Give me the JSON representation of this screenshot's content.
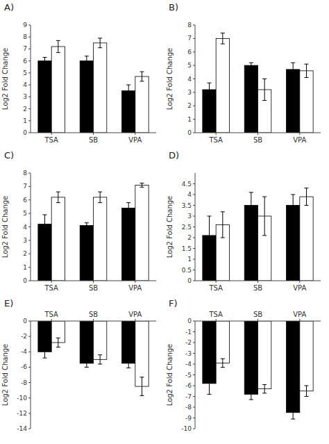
{
  "chart_data": [
    {
      "type": "bar",
      "title": "A)",
      "y_label": "Log2 Fold Change",
      "categories": [
        "TSA",
        "SB",
        "VPA"
      ],
      "series": [
        {
          "color": "#000000",
          "values": [
            6.0,
            6.0,
            3.5
          ],
          "errors": [
            0.3,
            0.4,
            0.5
          ]
        },
        {
          "color": "#ffffff",
          "values": [
            7.2,
            7.5,
            4.7
          ],
          "errors": [
            0.5,
            0.4,
            0.4
          ]
        }
      ],
      "ylim": [
        0,
        9
      ],
      "yticks": [
        0,
        1,
        2,
        3,
        4,
        5,
        6,
        7,
        8,
        9
      ]
    },
    {
      "type": "bar",
      "title": "B)",
      "y_label": "Log2 Fold Change",
      "categories": [
        "TSA",
        "SB",
        "VPA"
      ],
      "series": [
        {
          "color": "#000000",
          "values": [
            3.2,
            5.0,
            4.7
          ],
          "errors": [
            0.5,
            0.2,
            0.5
          ]
        },
        {
          "color": "#ffffff",
          "values": [
            7.0,
            3.2,
            4.6
          ],
          "errors": [
            0.4,
            0.8,
            0.5
          ]
        }
      ],
      "ylim": [
        0,
        8
      ],
      "yticks": [
        0,
        1,
        2,
        3,
        4,
        5,
        6,
        7,
        8
      ]
    },
    {
      "type": "bar",
      "title": "C)",
      "y_label": "Log2 Fold Change",
      "categories": [
        "TSA",
        "SB",
        "VPA"
      ],
      "series": [
        {
          "color": "#000000",
          "values": [
            4.2,
            4.1,
            5.4
          ],
          "errors": [
            0.7,
            0.2,
            0.4
          ]
        },
        {
          "color": "#ffffff",
          "values": [
            6.2,
            6.2,
            7.1
          ],
          "errors": [
            0.4,
            0.4,
            0.15
          ]
        }
      ],
      "ylim": [
        0,
        8
      ],
      "yticks": [
        0,
        1,
        2,
        3,
        4,
        5,
        6,
        7,
        8
      ]
    },
    {
      "type": "bar",
      "title": "D)",
      "y_label": "Log2 Fold Change",
      "categories": [
        "TSA",
        "SB",
        "VPA"
      ],
      "series": [
        {
          "color": "#000000",
          "values": [
            2.1,
            3.5,
            3.5
          ],
          "errors": [
            0.9,
            0.6,
            0.5
          ]
        },
        {
          "color": "#ffffff",
          "values": [
            2.6,
            3.0,
            3.9
          ],
          "errors": [
            0.6,
            0.9,
            0.4
          ]
        }
      ],
      "ylim": [
        0,
        5
      ],
      "yticks": [
        0,
        0.5,
        1,
        1.5,
        2,
        2.5,
        3,
        3.5,
        4,
        4.5
      ]
    },
    {
      "type": "bar",
      "title": "E)",
      "y_label": "Log2 Fold Change",
      "categories": [
        "TSA",
        "SB",
        "VPA"
      ],
      "series": [
        {
          "color": "#000000",
          "values": [
            -4.0,
            -5.5,
            -5.5
          ],
          "errors": [
            0.8,
            0.5,
            0.6
          ]
        },
        {
          "color": "#ffffff",
          "values": [
            -2.8,
            -5.0,
            -8.5
          ],
          "errors": [
            0.6,
            0.6,
            1.2
          ]
        }
      ],
      "ylim": [
        -14,
        0
      ],
      "yticks": [
        -14,
        -12,
        -10,
        -8,
        -6,
        -4,
        -2,
        0
      ]
    },
    {
      "type": "bar",
      "title": "F)",
      "y_label": "Log2 Fold Change",
      "categories": [
        "TSA",
        "SB",
        "VPA"
      ],
      "series": [
        {
          "color": "#000000",
          "values": [
            -5.8,
            -6.8,
            -8.5
          ],
          "errors": [
            1.0,
            0.5,
            0.6
          ]
        },
        {
          "color": "#ffffff",
          "values": [
            -3.9,
            -6.3,
            -6.5
          ],
          "errors": [
            0.4,
            0.4,
            0.5
          ]
        }
      ],
      "ylim": [
        -10,
        0
      ],
      "yticks": [
        -10,
        -9,
        -8,
        -7,
        -6,
        -5,
        -4,
        -3,
        -2,
        -1,
        0
      ]
    }
  ]
}
